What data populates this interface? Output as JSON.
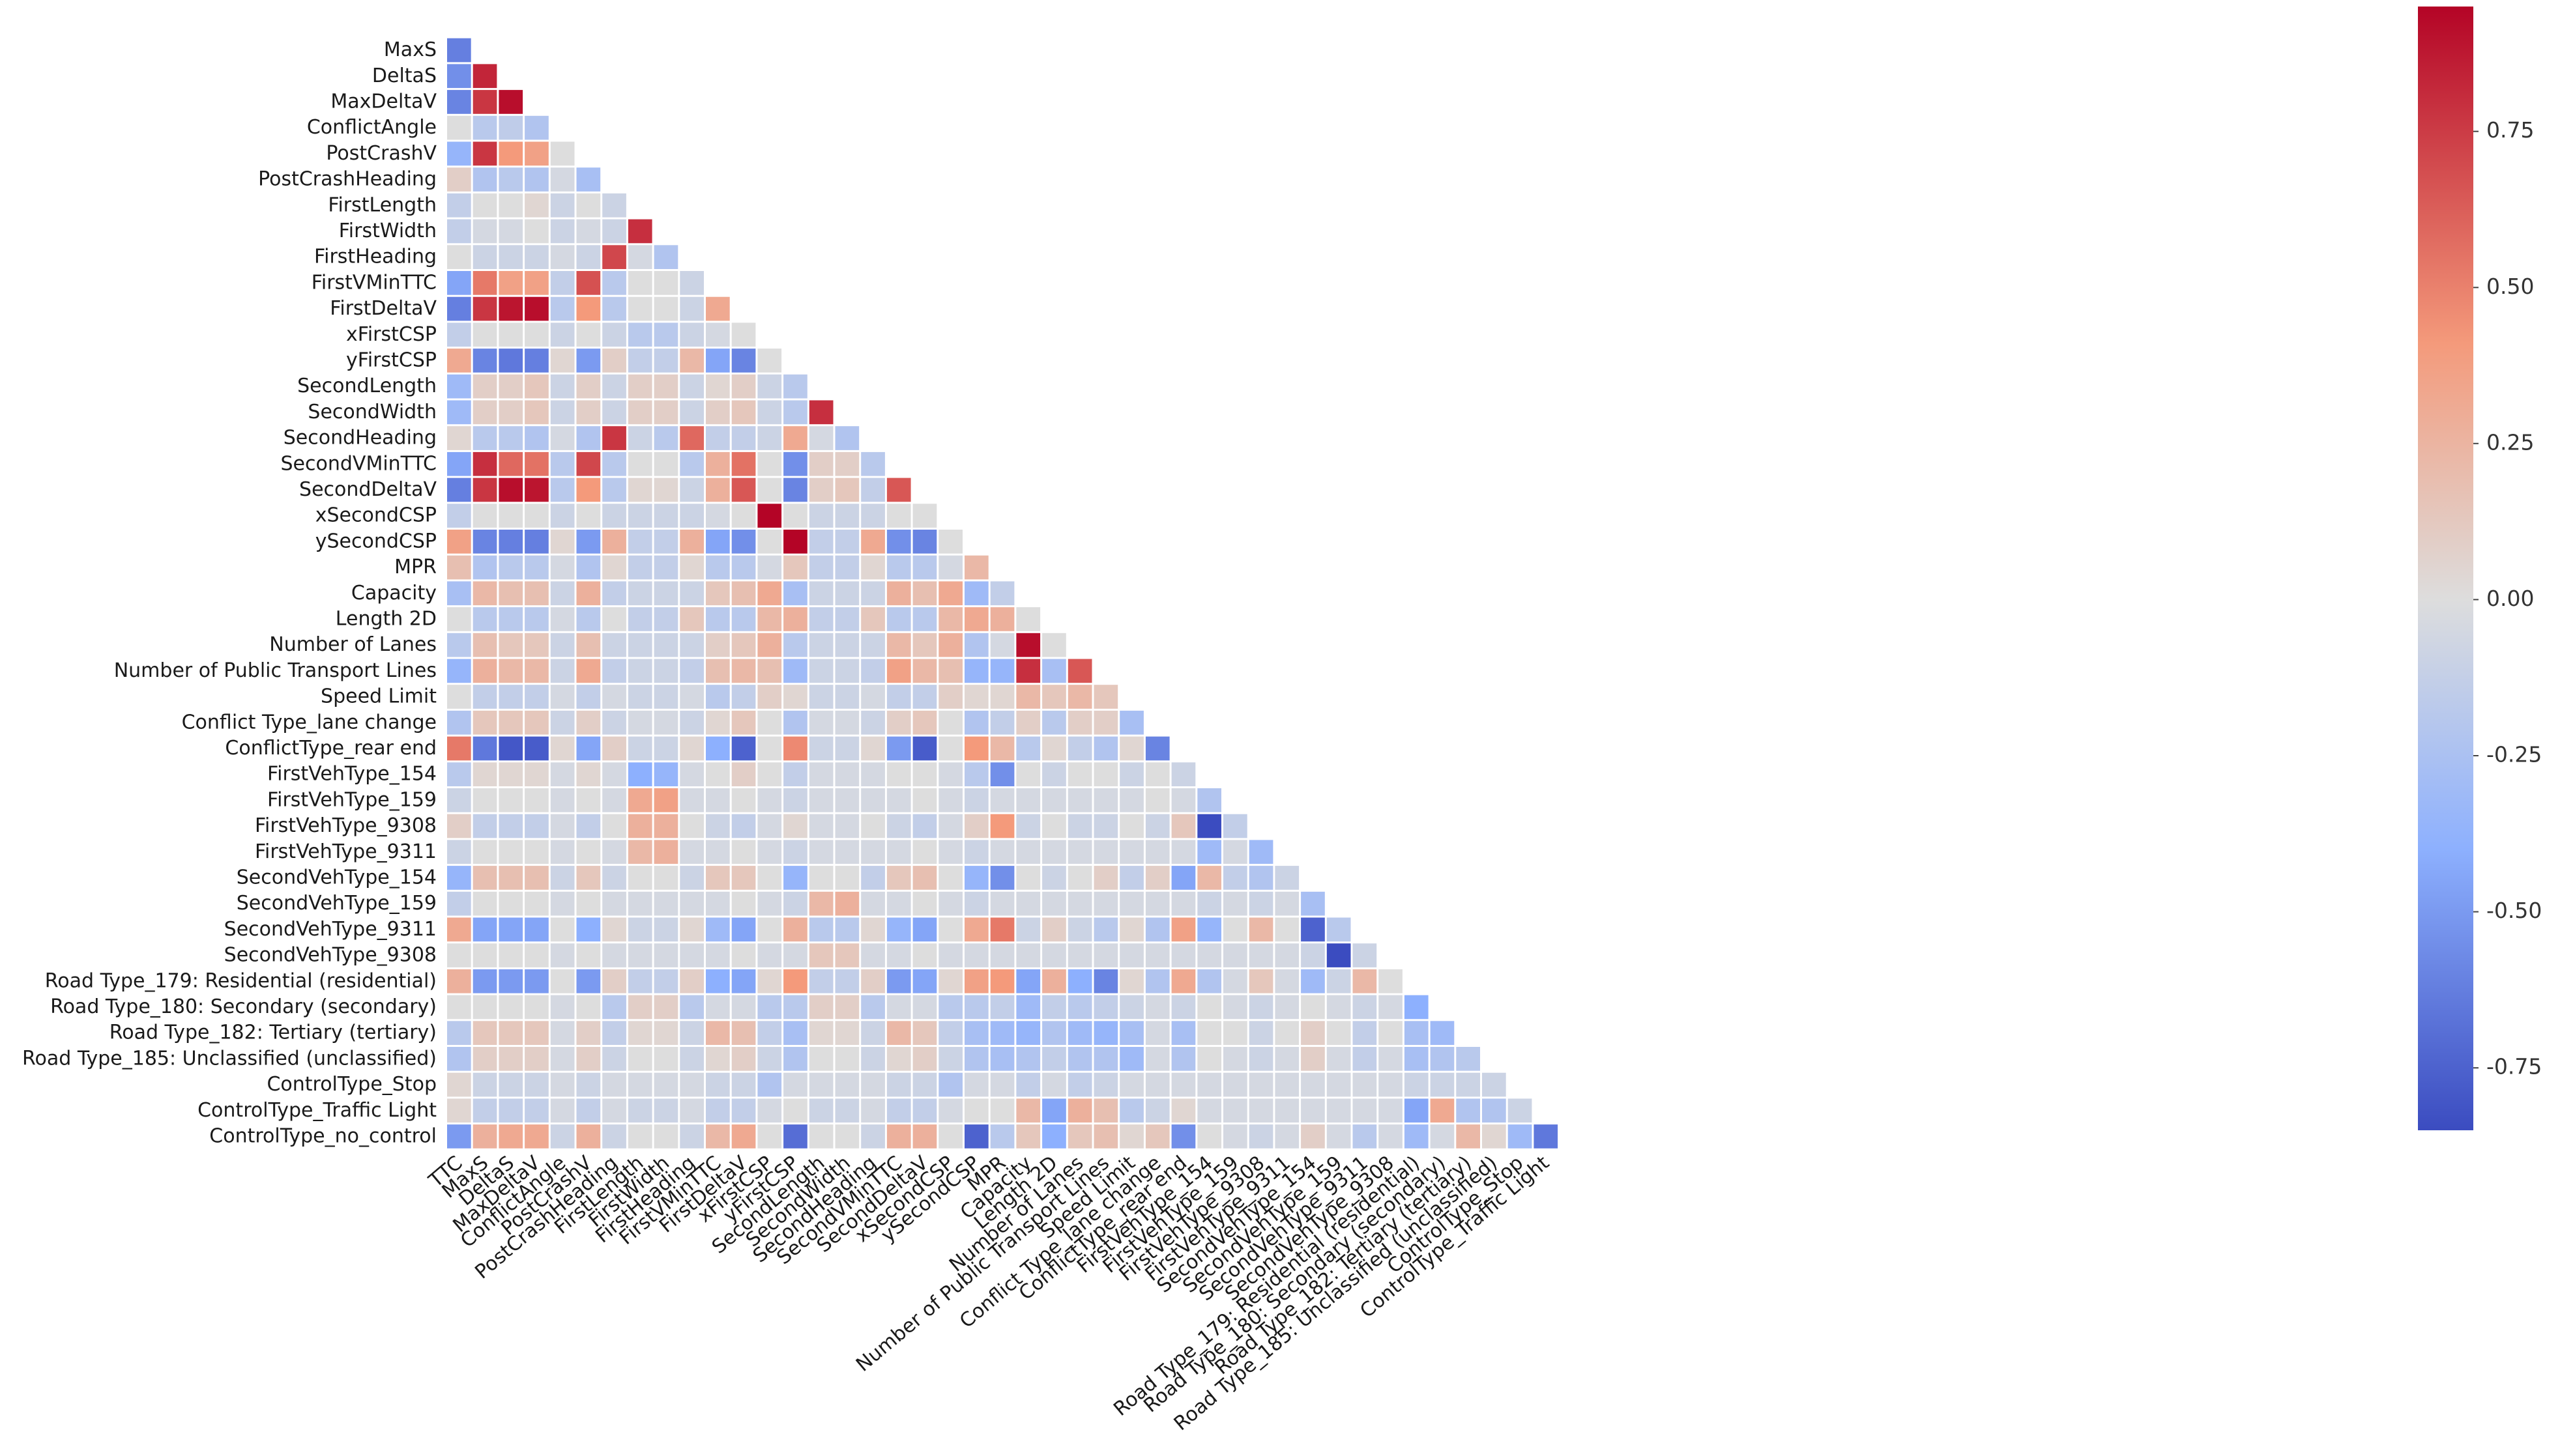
{
  "chart_data": {
    "type": "heatmap",
    "title": "",
    "xlabel": "",
    "ylabel": "",
    "mask": "upper-triangle",
    "colormap": "coolwarm",
    "vmin": -0.85,
    "vmax": 0.95,
    "colorbar": {
      "ticks": [
        0.75,
        0.5,
        0.25,
        0.0,
        -0.25,
        -0.5,
        -0.75
      ],
      "tick_labels": [
        "0.75",
        "0.50",
        "0.25",
        "0.00",
        "-0.25",
        "-0.50",
        "-0.75"
      ]
    },
    "labels": [
      "TTC",
      "MaxS",
      "DeltaS",
      "MaxDeltaV",
      "ConflictAngle",
      "PostCrashV",
      "PostCrashHeading",
      "FirstLength",
      "FirstWidth",
      "FirstHeading",
      "FirstVMinTTC",
      "FirstDeltaV",
      "xFirstCSP",
      "yFirstCSP",
      "SecondLength",
      "SecondWidth",
      "SecondHeading",
      "SecondVMinTTC",
      "SecondDeltaV",
      "xSecondCSP",
      "ySecondCSP",
      "MPR",
      "Capacity",
      "Length 2D",
      "Number of Lanes",
      "Number of Public Transport Lines",
      "Speed Limit",
      "Conflict Type_lane change",
      "ConflictType_rear end",
      "FirstVehType_154",
      "FirstVehType_159",
      "FirstVehType_9308",
      "FirstVehType_9311",
      "SecondVehType_154",
      "SecondVehType_159",
      "SecondVehType_9311",
      "SecondVehType_9308",
      "Road Type_179: Residential (residential)",
      "Road Type_180: Secondary (secondary)",
      "Road Type_182: Tertiary (tertiary)",
      "Road Type_185: Unclassified (unclassified)",
      "ControlType_Stop",
      "ControlType_Traffic Light",
      "ControlType_no_control"
    ],
    "matrix": [
      [],
      [
        -0.62
      ],
      [
        -0.55,
        0.85
      ],
      [
        -0.6,
        0.8,
        0.92
      ],
      [
        0.05,
        -0.15,
        -0.12,
        -0.2
      ],
      [
        -0.35,
        0.8,
        0.5,
        0.45,
        0.05
      ],
      [
        0.15,
        -0.2,
        -0.15,
        -0.2,
        0.0,
        -0.25
      ],
      [
        -0.1,
        0.05,
        0.05,
        0.1,
        -0.05,
        0.05,
        -0.05
      ],
      [
        -0.1,
        0.0,
        0.0,
        0.05,
        -0.05,
        0.0,
        -0.05,
        0.82
      ],
      [
        0.05,
        -0.05,
        -0.05,
        -0.05,
        0.0,
        -0.05,
        0.75,
        0.0,
        -0.2
      ],
      [
        -0.45,
        0.6,
        0.45,
        0.45,
        -0.1,
        0.72,
        -0.15,
        0.05,
        0.05,
        -0.05
      ],
      [
        -0.62,
        0.8,
        0.9,
        0.92,
        -0.15,
        0.5,
        -0.15,
        0.05,
        0.05,
        -0.05,
        0.4
      ],
      [
        -0.1,
        0.05,
        0.05,
        0.05,
        -0.05,
        0.05,
        -0.05,
        -0.15,
        -0.15,
        -0.05,
        0.0,
        0.05
      ],
      [
        0.4,
        -0.6,
        -0.65,
        -0.62,
        0.1,
        -0.5,
        0.15,
        -0.1,
        -0.1,
        0.3,
        -0.45,
        -0.6,
        0.05
      ],
      [
        -0.3,
        0.15,
        0.15,
        0.2,
        -0.05,
        0.15,
        -0.05,
        0.15,
        0.15,
        -0.05,
        0.1,
        0.15,
        -0.05,
        -0.15
      ],
      [
        -0.3,
        0.15,
        0.15,
        0.2,
        -0.05,
        0.15,
        -0.05,
        0.15,
        0.15,
        -0.05,
        0.15,
        0.2,
        -0.05,
        -0.15,
        0.82
      ],
      [
        0.1,
        -0.15,
        -0.15,
        -0.2,
        0.0,
        -0.2,
        0.8,
        -0.05,
        -0.15,
        0.65,
        -0.1,
        -0.1,
        -0.05,
        0.4,
        0.0,
        -0.2
      ],
      [
        -0.45,
        0.82,
        0.65,
        0.62,
        -0.15,
        0.75,
        -0.15,
        0.05,
        0.05,
        -0.15,
        0.35,
        0.62,
        0.05,
        -0.55,
        0.15,
        0.15,
        -0.15
      ],
      [
        -0.62,
        0.8,
        0.92,
        0.9,
        -0.15,
        0.5,
        -0.15,
        0.1,
        0.1,
        -0.05,
        0.35,
        0.7,
        0.05,
        -0.6,
        0.15,
        0.2,
        -0.1,
        0.7
      ],
      [
        -0.1,
        0.05,
        0.05,
        0.05,
        -0.05,
        0.05,
        -0.05,
        -0.05,
        -0.05,
        -0.05,
        0.0,
        0.05,
        0.95,
        0.05,
        -0.05,
        -0.05,
        -0.05,
        0.05,
        0.05
      ],
      [
        0.45,
        -0.6,
        -0.62,
        -0.62,
        0.1,
        -0.5,
        0.35,
        -0.1,
        -0.1,
        0.35,
        -0.45,
        -0.55,
        0.05,
        0.95,
        -0.1,
        -0.1,
        0.4,
        -0.55,
        -0.6,
        0.05
      ],
      [
        0.25,
        -0.2,
        -0.15,
        -0.15,
        0.0,
        -0.2,
        0.1,
        -0.1,
        -0.1,
        0.1,
        -0.15,
        -0.15,
        0.0,
        0.2,
        -0.1,
        -0.1,
        0.1,
        -0.15,
        -0.15,
        0.0,
        0.3
      ],
      [
        -0.25,
        0.3,
        0.25,
        0.25,
        -0.05,
        0.35,
        -0.1,
        -0.05,
        -0.05,
        -0.05,
        0.2,
        0.25,
        0.4,
        -0.25,
        -0.05,
        -0.05,
        -0.05,
        0.35,
        0.25,
        0.4,
        -0.3,
        -0.1
      ],
      [
        0.05,
        -0.15,
        -0.15,
        -0.15,
        0.0,
        -0.15,
        0.05,
        -0.1,
        -0.1,
        0.2,
        -0.15,
        -0.15,
        0.3,
        0.35,
        -0.1,
        -0.1,
        0.2,
        -0.15,
        -0.15,
        0.3,
        0.4,
        0.35,
        0.05
      ],
      [
        -0.15,
        0.25,
        0.2,
        0.2,
        -0.05,
        0.25,
        -0.05,
        -0.05,
        -0.05,
        -0.05,
        0.15,
        0.2,
        0.35,
        -0.15,
        -0.05,
        -0.05,
        -0.05,
        0.3,
        0.2,
        0.35,
        -0.2,
        0.0,
        0.92,
        0.05
      ],
      [
        -0.35,
        0.35,
        0.3,
        0.3,
        -0.05,
        0.4,
        -0.1,
        -0.05,
        -0.05,
        -0.1,
        0.25,
        0.3,
        0.25,
        -0.3,
        -0.05,
        -0.05,
        -0.1,
        0.45,
        0.3,
        0.25,
        -0.35,
        -0.35,
        0.82,
        -0.25,
        0.7
      ],
      [
        0.05,
        -0.1,
        -0.1,
        -0.1,
        0.0,
        -0.1,
        0.0,
        -0.05,
        -0.05,
        0.0,
        -0.15,
        -0.1,
        0.15,
        0.1,
        -0.05,
        -0.05,
        0.0,
        -0.1,
        -0.1,
        0.15,
        0.1,
        0.1,
        0.3,
        0.2,
        0.3,
        0.2
      ],
      [
        -0.2,
        0.2,
        0.2,
        0.2,
        -0.05,
        0.15,
        -0.05,
        0.0,
        0.0,
        -0.05,
        0.1,
        0.2,
        0.05,
        -0.2,
        0.0,
        0.0,
        -0.05,
        0.15,
        0.2,
        0.05,
        -0.2,
        -0.1,
        0.15,
        -0.15,
        0.15,
        0.15,
        -0.25
      ],
      [
        0.6,
        -0.65,
        -0.8,
        -0.78,
        0.1,
        -0.45,
        0.15,
        -0.05,
        -0.05,
        0.1,
        -0.4,
        -0.75,
        0.05,
        0.55,
        -0.05,
        -0.05,
        0.1,
        -0.5,
        -0.78,
        0.05,
        0.5,
        0.3,
        -0.15,
        0.1,
        -0.1,
        -0.2,
        0.1,
        -0.6
      ],
      [
        -0.15,
        0.1,
        0.1,
        0.1,
        0.0,
        0.1,
        0.0,
        -0.4,
        -0.35,
        0.0,
        0.05,
        0.15,
        0.05,
        -0.1,
        0.0,
        0.0,
        0.0,
        0.05,
        0.05,
        0.0,
        -0.15,
        -0.55,
        0.05,
        -0.05,
        0.05,
        0.05,
        -0.05,
        0.05,
        -0.05
      ],
      [
        -0.05,
        0.05,
        0.05,
        0.05,
        0.0,
        0.05,
        0.0,
        0.4,
        0.45,
        0.0,
        0.0,
        0.05,
        0.0,
        -0.05,
        0.0,
        0.0,
        0.0,
        0.0,
        0.05,
        0.0,
        -0.05,
        0.0,
        0.0,
        0.0,
        0.0,
        0.0,
        0.0,
        0.05,
        0.0,
        -0.2
      ],
      [
        0.15,
        -0.1,
        -0.1,
        -0.1,
        0.0,
        -0.1,
        0.05,
        0.35,
        0.35,
        0.05,
        -0.05,
        -0.1,
        0.0,
        0.1,
        0.0,
        0.0,
        0.05,
        -0.05,
        -0.1,
        0.0,
        0.15,
        0.5,
        -0.05,
        0.05,
        -0.05,
        -0.05,
        0.05,
        -0.05,
        0.2,
        -0.85,
        -0.1
      ],
      [
        -0.05,
        0.05,
        0.05,
        0.05,
        0.0,
        0.05,
        0.0,
        0.3,
        0.35,
        0.0,
        0.0,
        0.05,
        0.0,
        -0.05,
        0.0,
        0.0,
        0.0,
        0.0,
        0.05,
        0.0,
        -0.05,
        0.0,
        0.0,
        0.0,
        0.0,
        0.0,
        0.0,
        0.0,
        0.0,
        -0.3,
        0.0,
        -0.3
      ],
      [
        -0.35,
        0.25,
        0.25,
        0.25,
        -0.05,
        0.2,
        -0.05,
        0.05,
        0.05,
        -0.05,
        0.2,
        0.2,
        0.05,
        -0.35,
        0.05,
        0.05,
        -0.1,
        0.2,
        0.25,
        0.05,
        -0.35,
        -0.55,
        0.05,
        -0.05,
        0.05,
        0.15,
        -0.1,
        0.15,
        -0.45,
        0.3,
        -0.1,
        -0.2,
        -0.05
      ],
      [
        -0.1,
        0.05,
        0.05,
        0.05,
        0.0,
        0.05,
        0.0,
        0.0,
        0.0,
        0.0,
        0.0,
        0.05,
        0.0,
        -0.05,
        0.3,
        0.35,
        0.0,
        0.0,
        0.05,
        0.0,
        -0.05,
        0.0,
        0.0,
        0.0,
        0.0,
        0.0,
        0.0,
        0.0,
        0.0,
        -0.05,
        0.0,
        -0.05,
        0.0,
        -0.25
      ],
      [
        0.4,
        -0.45,
        -0.45,
        -0.45,
        0.05,
        -0.4,
        0.1,
        -0.05,
        -0.05,
        0.1,
        -0.3,
        -0.45,
        0.05,
        0.35,
        -0.15,
        -0.15,
        0.1,
        -0.35,
        -0.45,
        0.05,
        0.4,
        0.6,
        -0.05,
        0.15,
        -0.05,
        -0.15,
        0.1,
        -0.2,
        0.45,
        -0.35,
        0.05,
        0.3,
        0.05,
        -0.75,
        -0.15
      ],
      [
        0.05,
        0.05,
        0.05,
        0.05,
        0.0,
        0.05,
        0.0,
        0.0,
        0.0,
        0.0,
        0.0,
        0.05,
        0.0,
        0.0,
        0.2,
        0.2,
        0.0,
        0.0,
        0.05,
        0.0,
        0.0,
        0.0,
        0.0,
        0.0,
        0.0,
        0.0,
        0.0,
        0.0,
        0.0,
        0.0,
        0.0,
        0.0,
        0.0,
        -0.05,
        -0.85,
        -0.05
      ],
      [
        0.35,
        -0.5,
        -0.5,
        -0.5,
        0.05,
        -0.5,
        0.15,
        -0.1,
        -0.1,
        0.15,
        -0.4,
        -0.45,
        0.1,
        0.5,
        -0.1,
        -0.1,
        0.15,
        -0.5,
        -0.45,
        0.1,
        0.45,
        0.5,
        -0.45,
        0.35,
        -0.4,
        -0.6,
        0.1,
        -0.2,
        0.4,
        -0.2,
        0.0,
        0.2,
        0.0,
        -0.3,
        -0.05,
        0.3,
        0.05
      ],
      [
        0.05,
        0.05,
        0.05,
        0.05,
        0.0,
        0.05,
        -0.15,
        0.15,
        0.15,
        -0.15,
        0.0,
        0.0,
        -0.15,
        -0.15,
        0.15,
        0.15,
        -0.15,
        0.0,
        0.0,
        -0.15,
        -0.15,
        -0.1,
        -0.3,
        -0.1,
        -0.15,
        -0.1,
        -0.05,
        0.0,
        -0.05,
        0.05,
        0.0,
        -0.05,
        0.0,
        0.05,
        0.0,
        -0.05,
        0.0,
        -0.4
      ],
      [
        -0.15,
        0.2,
        0.2,
        0.2,
        0.0,
        0.15,
        -0.1,
        0.1,
        0.1,
        -0.05,
        0.3,
        0.25,
        -0.1,
        -0.25,
        0.1,
        0.1,
        -0.05,
        0.3,
        0.2,
        -0.1,
        -0.25,
        -0.3,
        -0.35,
        -0.2,
        -0.3,
        -0.35,
        -0.25,
        0.0,
        -0.25,
        0.05,
        0.05,
        -0.05,
        0.05,
        0.15,
        0.05,
        -0.1,
        0.05,
        -0.25,
        -0.3
      ],
      [
        -0.2,
        0.15,
        0.15,
        0.15,
        0.0,
        0.15,
        -0.05,
        0.05,
        0.05,
        -0.05,
        0.1,
        0.15,
        -0.05,
        -0.2,
        0.05,
        0.05,
        -0.05,
        0.1,
        0.15,
        -0.05,
        -0.2,
        -0.25,
        -0.2,
        -0.1,
        -0.2,
        -0.2,
        -0.3,
        0.0,
        -0.2,
        0.05,
        0.0,
        -0.05,
        0.0,
        0.15,
        0.0,
        -0.1,
        0.0,
        -0.25,
        -0.2,
        -0.15
      ],
      [
        0.1,
        -0.05,
        -0.05,
        -0.05,
        0.0,
        -0.05,
        0.0,
        0.0,
        0.0,
        0.0,
        -0.05,
        -0.05,
        -0.2,
        0.0,
        0.0,
        0.0,
        0.0,
        -0.05,
        -0.05,
        -0.2,
        0.0,
        0.0,
        -0.1,
        0.0,
        -0.1,
        -0.05,
        0.0,
        0.0,
        0.0,
        0.0,
        0.0,
        0.0,
        0.0,
        0.0,
        0.0,
        0.0,
        0.0,
        -0.05,
        -0.05,
        -0.05,
        -0.05
      ],
      [
        0.1,
        -0.1,
        -0.1,
        -0.1,
        0.0,
        -0.1,
        0.0,
        -0.05,
        -0.05,
        0.0,
        -0.1,
        -0.1,
        0.0,
        0.05,
        -0.05,
        -0.05,
        0.0,
        -0.1,
        -0.1,
        0.0,
        0.05,
        0.05,
        0.3,
        -0.45,
        0.35,
        0.25,
        -0.15,
        -0.05,
        0.1,
        0.0,
        0.0,
        0.0,
        0.0,
        0.0,
        0.0,
        0.0,
        0.0,
        -0.45,
        0.4,
        -0.2,
        -0.2,
        -0.05
      ],
      [
        -0.5,
        0.35,
        0.4,
        0.4,
        -0.05,
        0.35,
        -0.05,
        0.05,
        0.05,
        -0.05,
        0.3,
        0.4,
        0.05,
        -0.7,
        0.05,
        0.05,
        -0.05,
        0.35,
        0.35,
        0.05,
        -0.75,
        -0.15,
        0.2,
        -0.4,
        0.2,
        0.25,
        0.1,
        0.2,
        -0.55,
        0.05,
        0.0,
        -0.05,
        0.0,
        0.15,
        0.0,
        -0.15,
        0.0,
        -0.3,
        0.0,
        0.3,
        0.1,
        -0.3,
        -0.65
      ]
    ]
  }
}
